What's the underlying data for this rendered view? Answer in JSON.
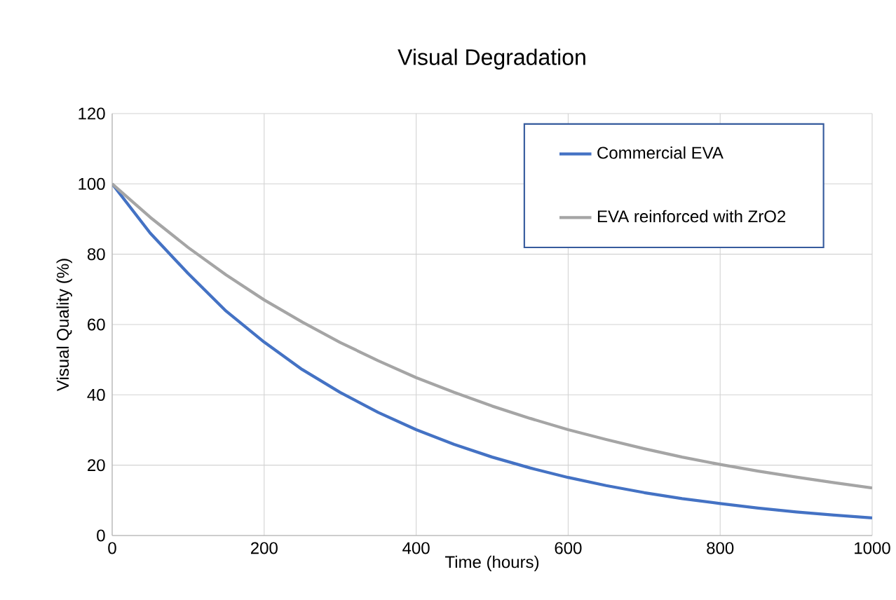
{
  "chart_data": {
    "type": "line",
    "title": "Visual Degradation",
    "xlabel": "Time (hours)",
    "ylabel": "Visual Quality (%)",
    "x": [
      0,
      50,
      100,
      150,
      200,
      250,
      300,
      350,
      400,
      450,
      500,
      550,
      600,
      650,
      700,
      750,
      800,
      850,
      900,
      950,
      1000
    ],
    "series": [
      {
        "name": "Commercial EVA",
        "color": "#4472c4",
        "values": [
          100,
          86,
          74.5,
          63.8,
          55,
          47.2,
          40.7,
          35,
          30.1,
          25.9,
          22.3,
          19.2,
          16.5,
          14.2,
          12.2,
          10.5,
          9.1,
          7.8,
          6.7,
          5.8,
          5.0
        ]
      },
      {
        "name": "EVA reinforced with ZrO2",
        "color": "#a5a5a5",
        "values": [
          100,
          90.5,
          81.9,
          74.1,
          67,
          60.7,
          54.9,
          49.7,
          44.9,
          40.7,
          36.8,
          33.3,
          30.1,
          27.3,
          24.7,
          22.3,
          20.2,
          18.3,
          16.6,
          15,
          13.5
        ]
      }
    ],
    "xlim": [
      0,
      1000
    ],
    "ylim": [
      0,
      120
    ],
    "xticks": [
      0,
      200,
      400,
      600,
      800,
      1000
    ],
    "yticks": [
      0,
      20,
      40,
      60,
      80,
      100,
      120
    ],
    "grid": true,
    "legend": "top right",
    "marker": "none",
    "line_style": "solid"
  }
}
